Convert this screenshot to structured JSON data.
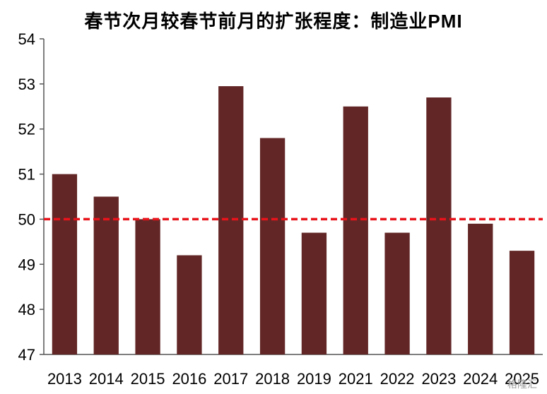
{
  "chart_data": {
    "type": "bar",
    "title": "春节次月较春节前月的扩张程度：制造业PMI",
    "categories": [
      "2013",
      "2014",
      "2015",
      "2016",
      "2017",
      "2018",
      "2019",
      "2021",
      "2022",
      "2023",
      "2024",
      "2025"
    ],
    "values": [
      51.0,
      50.5,
      50.0,
      49.2,
      52.95,
      51.8,
      49.7,
      52.5,
      49.7,
      52.7,
      49.9,
      49.3
    ],
    "ylim": [
      47,
      54
    ],
    "yticks": [
      47,
      48,
      49,
      50,
      51,
      52,
      53,
      54
    ],
    "reference_line": 50,
    "grid": false,
    "colors": {
      "bar": "#632626",
      "reference": "#e8141b",
      "axis": "#555555"
    }
  },
  "watermark": "格隆汇"
}
